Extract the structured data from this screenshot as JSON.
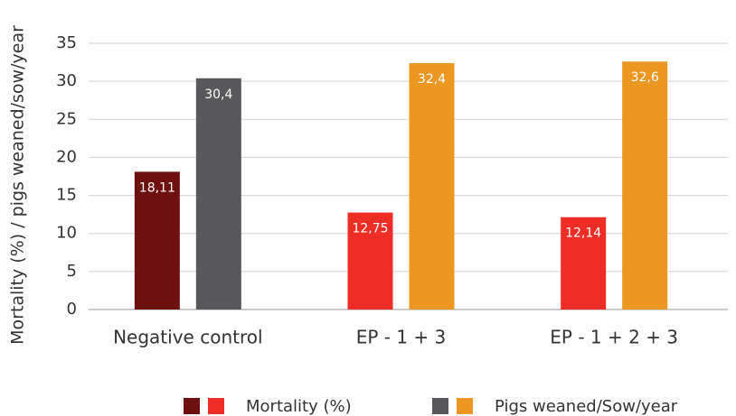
{
  "chart_data": {
    "type": "bar",
    "y_label": "Mortality (%) / pigs weaned/sow/year",
    "categories": [
      "Negative control",
      "EP - 1 + 3",
      "EP - 1 + 2 + 3"
    ],
    "series": [
      {
        "name": "Mortality (%)",
        "color": [
          "#6e0f10",
          "#ee2d27",
          "#ee2d27"
        ],
        "values": [
          18.11,
          12.75,
          12.14
        ],
        "value_labels": [
          "18,11",
          "12,75",
          "12,14"
        ]
      },
      {
        "name": "Pigs weaned/Sow/year",
        "color": [
          "#58585a",
          "#eb9722",
          "#eb9722"
        ],
        "values": [
          30.4,
          32.4,
          32.6
        ],
        "value_labels": [
          "30,4",
          "32,4",
          "32,6"
        ]
      }
    ],
    "ylim": [
      0,
      35
    ],
    "yticks": [
      0,
      5,
      10,
      15,
      20,
      25,
      30,
      35
    ],
    "grid": true
  }
}
